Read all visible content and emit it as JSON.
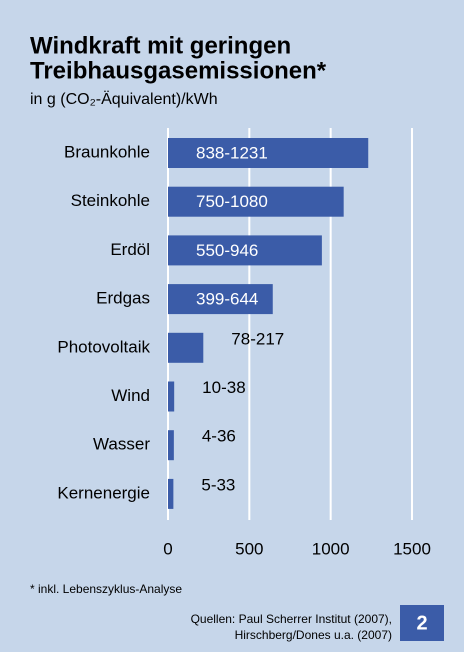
{
  "chart_data": {
    "type": "bar",
    "orientation": "horizontal",
    "title": [
      "Windkraft mit geringen",
      "Treibhausgasemissionen*"
    ],
    "subtitle": "in g (CO₂-Äquivalent)/kWh",
    "categories": [
      "Braunkohle",
      "Steinkohle",
      "Erdöl",
      "Erdgas",
      "Photovoltaik",
      "Wind",
      "Wasser",
      "Kernenergie"
    ],
    "values": [
      1231,
      1080,
      946,
      644,
      217,
      38,
      36,
      33
    ],
    "value_labels": [
      "838-1231",
      "750-1080",
      "550-946",
      "399-644",
      "78-217",
      "10-38",
      "4-36",
      "5-33"
    ],
    "color": "#3b5ca8",
    "xlim": [
      0,
      1500
    ],
    "xticks": [
      0,
      500,
      1000,
      1500
    ],
    "grid": true,
    "footnote": "* inkl. Lebenszyklus-Analyse",
    "sources": [
      "Quellen: Paul Scherrer Institut (2007),",
      "Hirschberg/Dones u.a. (2007)"
    ],
    "badge": "2"
  }
}
